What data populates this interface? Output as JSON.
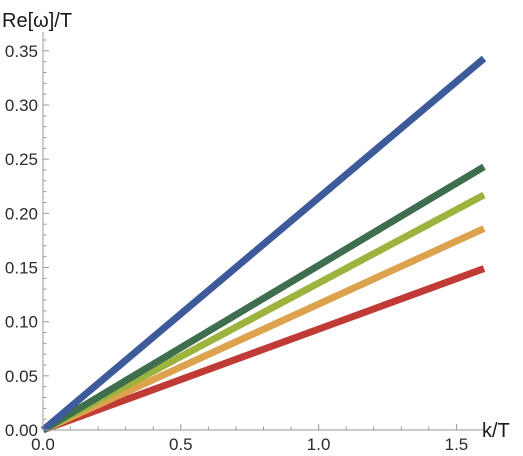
{
  "chart_data": {
    "type": "line",
    "title": "",
    "xlabel": "k/T",
    "ylabel": "Re[ω]/T",
    "xlim": [
      0,
      1.6
    ],
    "ylim": [
      0,
      0.36
    ],
    "grid": false,
    "x_ticks": [
      "0.0",
      "0.5",
      "1.0",
      "1.5"
    ],
    "y_ticks": [
      "0.00",
      "0.05",
      "0.10",
      "0.15",
      "0.20",
      "0.25",
      "0.30",
      "0.35"
    ],
    "series": [
      {
        "color": "#3d5a9a",
        "x": [
          0,
          1.6
        ],
        "y": [
          0,
          0.343
        ]
      },
      {
        "color": "#3f6e4f",
        "x": [
          0,
          1.6
        ],
        "y": [
          0,
          0.243
        ]
      },
      {
        "color": "#9cb43e",
        "x": [
          0,
          1.6
        ],
        "y": [
          0,
          0.217
        ]
      },
      {
        "color": "#dca24e",
        "x": [
          0,
          1.6
        ],
        "y": [
          0,
          0.186
        ]
      },
      {
        "color": "#c03a36",
        "x": [
          0,
          1.6
        ],
        "y": [
          0,
          0.149
        ]
      }
    ]
  }
}
